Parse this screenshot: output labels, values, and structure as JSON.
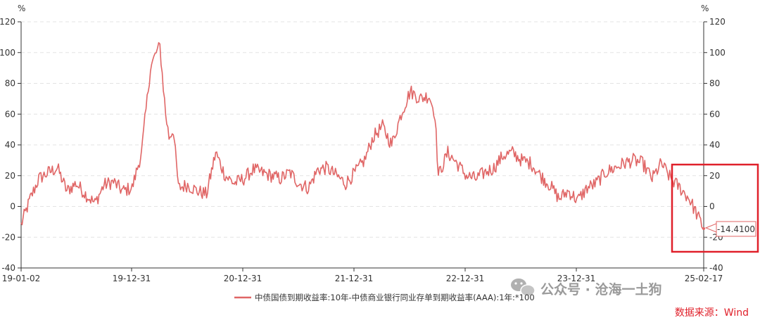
{
  "chart_data": {
    "type": "line",
    "y_unit_left": "%",
    "y_unit_right": "%",
    "ylim": [
      -40,
      120
    ],
    "y_ticks": [
      -40,
      -20,
      0,
      20,
      40,
      60,
      80,
      100,
      120
    ],
    "x_tick_labels": [
      "19-01-02",
      "19-12-31",
      "20-12-31",
      "21-12-31",
      "22-12-31",
      "23-12-31",
      "25-02-17"
    ],
    "grid": "horizontal dashed",
    "series": [
      {
        "name": "中债国债到期收益率:10年-中债商业银行同业存单到期收益率(AAA):1年:*100",
        "color": "#e06666",
        "x": [
          "2019-01-02",
          "2019-02-01",
          "2019-03-01",
          "2019-04-01",
          "2019-05-01",
          "2019-06-01",
          "2019-07-01",
          "2019-08-01",
          "2019-09-01",
          "2019-10-01",
          "2019-11-01",
          "2019-12-01",
          "2020-01-01",
          "2020-02-01",
          "2020-03-01",
          "2020-03-20",
          "2020-04-01",
          "2020-04-20",
          "2020-05-01",
          "2020-05-15",
          "2020-06-01",
          "2020-07-01",
          "2020-08-01",
          "2020-09-01",
          "2020-10-01",
          "2020-11-01",
          "2020-12-01",
          "2021-01-01",
          "2021-02-01",
          "2021-03-01",
          "2021-04-01",
          "2021-05-01",
          "2021-06-01",
          "2021-07-01",
          "2021-08-01",
          "2021-09-01",
          "2021-10-01",
          "2021-11-01",
          "2021-12-01",
          "2022-01-01",
          "2022-02-01",
          "2022-03-01",
          "2022-04-01",
          "2022-05-01",
          "2022-06-01",
          "2022-07-01",
          "2022-08-01",
          "2022-09-01",
          "2022-09-20",
          "2022-10-01",
          "2022-11-01",
          "2022-12-01",
          "2023-01-01",
          "2023-02-01",
          "2023-03-01",
          "2023-04-01",
          "2023-05-01",
          "2023-06-01",
          "2023-07-01",
          "2023-08-01",
          "2023-09-01",
          "2023-10-01",
          "2023-11-01",
          "2023-12-01",
          "2024-01-01",
          "2024-02-01",
          "2024-03-01",
          "2024-04-01",
          "2024-05-01",
          "2024-06-01",
          "2024-07-01",
          "2024-08-01",
          "2024-09-01",
          "2024-10-01",
          "2024-11-01",
          "2024-12-01",
          "2025-01-01",
          "2025-02-17"
        ],
        "values": [
          -12,
          5,
          18,
          22,
          25,
          10,
          15,
          8,
          2,
          14,
          16,
          10,
          12,
          35,
          90,
          100,
          104,
          60,
          45,
          50,
          12,
          14,
          10,
          8,
          35,
          20,
          15,
          18,
          24,
          22,
          20,
          18,
          22,
          15,
          12,
          24,
          25,
          20,
          15,
          22,
          30,
          45,
          52,
          40,
          60,
          75,
          70,
          72,
          60,
          20,
          35,
          28,
          20,
          18,
          22,
          25,
          33,
          35,
          30,
          28,
          20,
          14,
          5,
          10,
          4,
          12,
          15,
          22,
          25,
          28,
          30,
          28,
          18,
          28,
          18,
          12,
          5,
          -14.41
        ]
      }
    ],
    "last_value_label": "-14.4100",
    "legend_position": "bottom-center"
  },
  "source_text": "数据来源：Wind",
  "watermark_text": "公众号 · 沧海一土狗"
}
